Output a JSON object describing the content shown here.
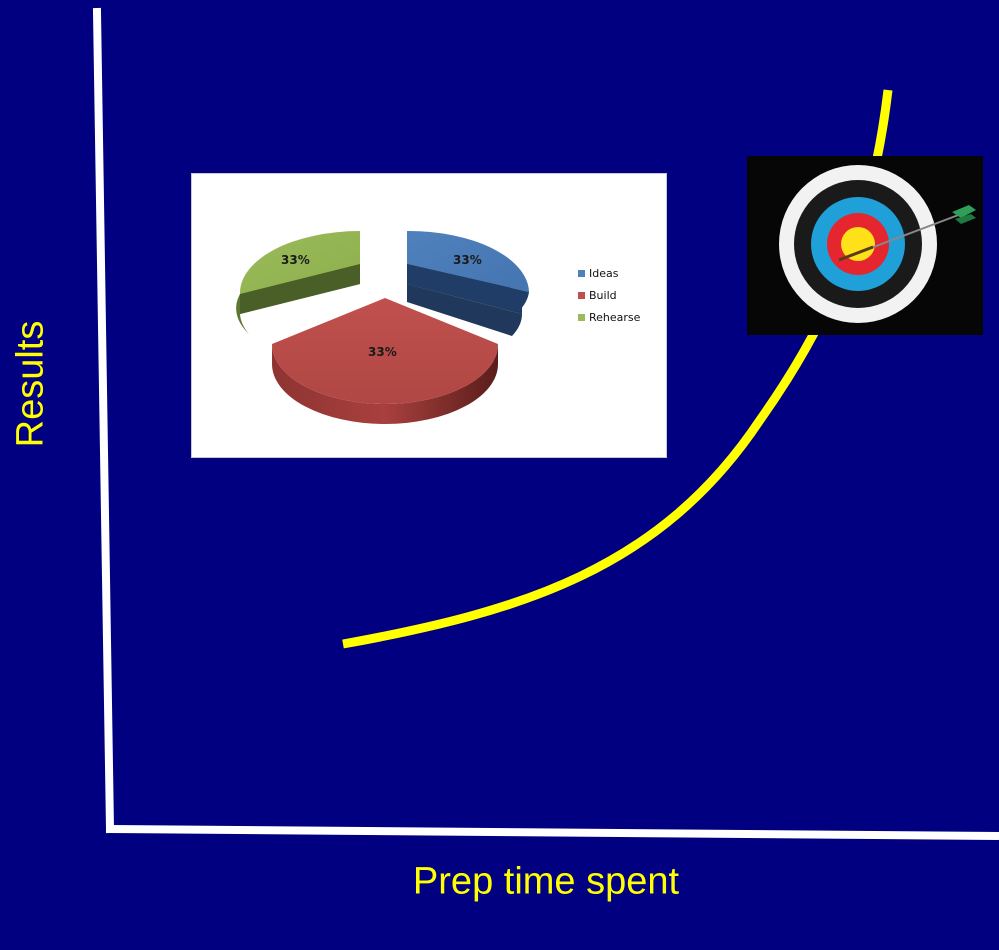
{
  "axes": {
    "y_label": "Results",
    "x_label": "Prep time spent"
  },
  "colors": {
    "background": "#000080",
    "axis": "#ffffff",
    "curve": "#ffff00",
    "label": "#ffff00"
  },
  "pie_chart": {
    "type": "pie",
    "style": "3d-exploded",
    "slices": [
      {
        "label": "Ideas",
        "value": 33,
        "display": "33%",
        "color": "#4f81bd"
      },
      {
        "label": "Build",
        "value": 33,
        "display": "33%",
        "color": "#c0504d"
      },
      {
        "label": "Rehearse",
        "value": 33,
        "display": "33%",
        "color": "#9bbb59"
      }
    ],
    "legend_placement": "right"
  },
  "target_image": {
    "icon": "archery-target-with-arrow-icon"
  }
}
